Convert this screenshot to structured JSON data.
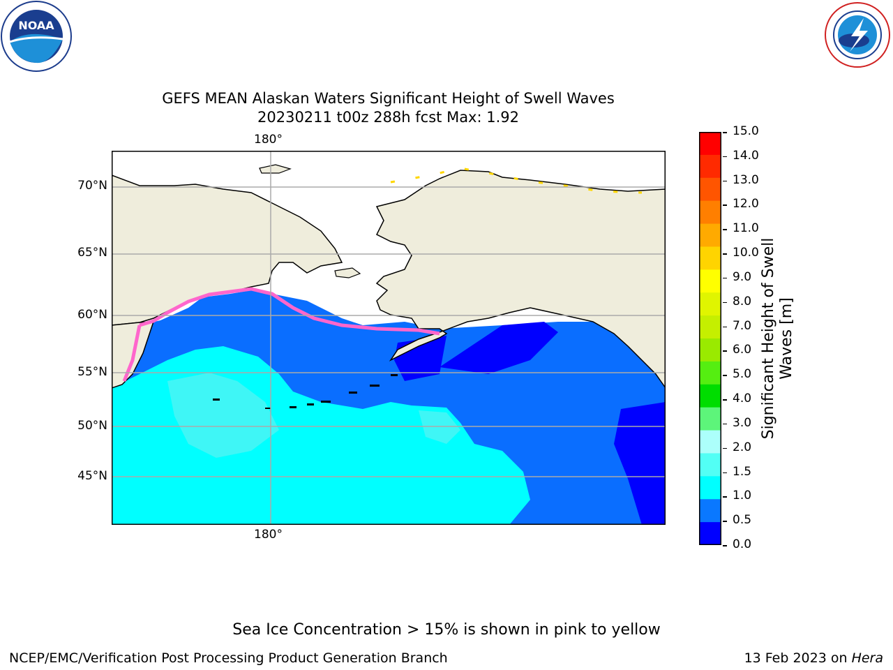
{
  "title": {
    "line1": "GEFS MEAN Alaskan Waters Significant Height of Swell Waves",
    "line2": "20230211 t00z 288h fcst   Max: 1.92"
  },
  "logos": {
    "left": {
      "name": "noaa-logo",
      "text": "NOAA"
    },
    "right": {
      "name": "nws-logo"
    }
  },
  "map": {
    "lat_labels": [
      "70°N",
      "65°N",
      "60°N",
      "55°N",
      "50°N",
      "45°N"
    ],
    "lon_label_top": "180°",
    "lon_label_bottom": "180°",
    "colors": {
      "land": "#efeddc",
      "ice_free_sea_ice_area": "#ffffff",
      "swell_0_0p5": "#0000ff",
      "swell_0p5_1": "#0a6eff",
      "swell_1_1p5": "#00ffff",
      "swell_1p5_2": "#3ff6f6",
      "ice": "#ff66cc",
      "ice_high": "#ffd700"
    }
  },
  "colorbar": {
    "label": "Significant Height of Swell Waves [m]",
    "label_line1": "Significant Height of Swell",
    "label_line2": "Waves [m]",
    "ticks": [
      "15.0",
      "14.0",
      "13.0",
      "12.0",
      "11.0",
      "10.0",
      "9.0",
      "8.0",
      "7.0",
      "6.0",
      "5.0",
      "4.0",
      "3.0",
      "2.0",
      "1.5",
      "1.0",
      "0.5",
      "0.0"
    ],
    "colors_top_to_bottom": [
      "#ff0000",
      "#ff2a00",
      "#ff5500",
      "#ff7f00",
      "#ffaa00",
      "#ffd400",
      "#ffff00",
      "#e0f500",
      "#c5ef00",
      "#9aea00",
      "#55ee11",
      "#00dd00",
      "#5df57a",
      "#acfffb",
      "#52fff5",
      "#00ffff",
      "#0a78ff",
      "#0000ff"
    ]
  },
  "note": "Sea Ice Concentration > 15% is shown in pink to yellow",
  "footer": {
    "left": "NCEP/EMC/Verification Post Processing Product Generation Branch",
    "right_prefix": "13 Feb 2023 on ",
    "right_italic": "Hera"
  }
}
